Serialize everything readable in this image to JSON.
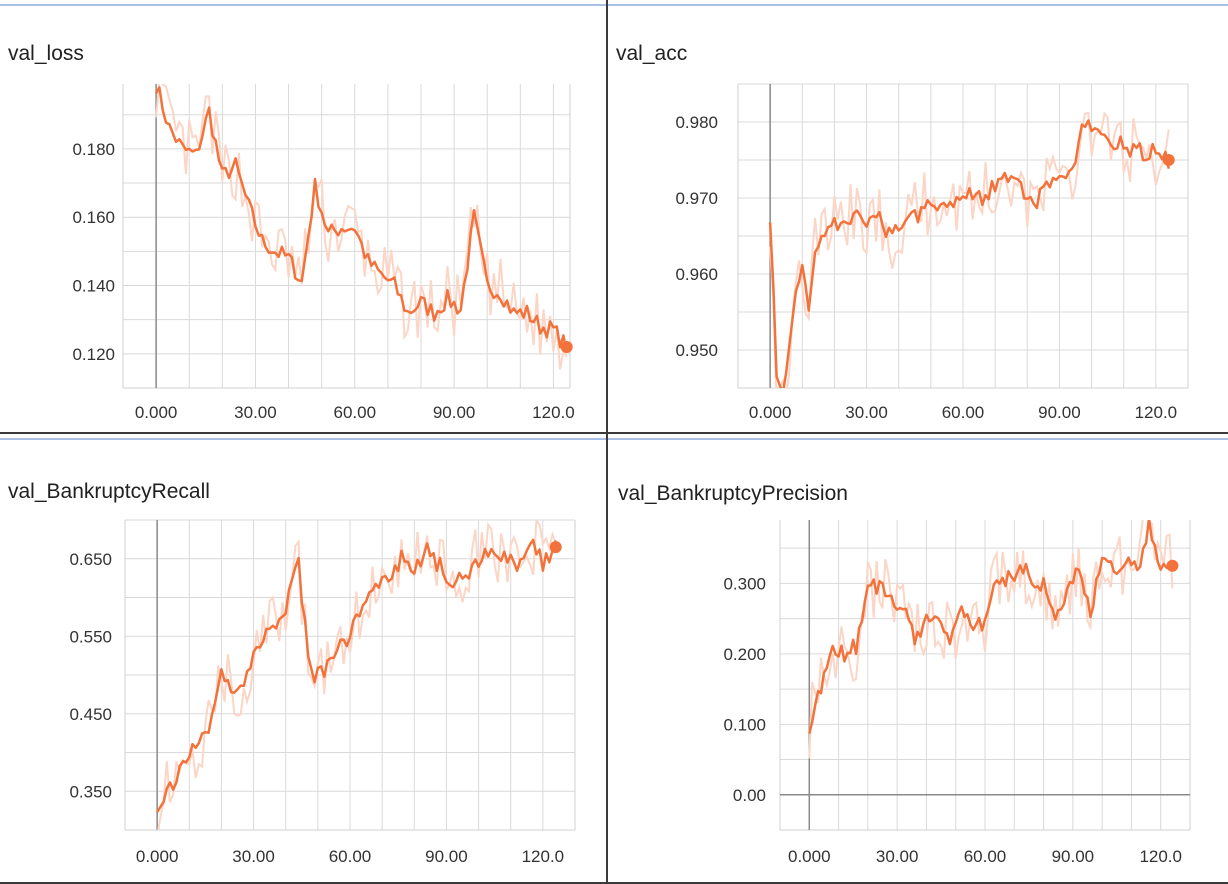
{
  "accent_color": "#f3723b",
  "raw_color": "#fbd5c6",
  "chart_data": [
    {
      "type": "line",
      "title": "val_loss",
      "x_ticks": [
        "0.000",
        "30.00",
        "60.00",
        "90.00",
        "120.0"
      ],
      "y_ticks": [
        "0.120",
        "0.140",
        "0.160",
        "0.180"
      ],
      "xlim": [
        -10,
        125
      ],
      "ylim": [
        0.11,
        0.199
      ],
      "grid": true,
      "series": [
        {
          "smoothing": "smoothed",
          "x": [
            0,
            4,
            8,
            12,
            16,
            20,
            24,
            28,
            32,
            36,
            40,
            44,
            48,
            52,
            56,
            60,
            64,
            68,
            72,
            76,
            80,
            84,
            88,
            92,
            96,
            100,
            104,
            108,
            112,
            116,
            120,
            124
          ],
          "y": [
            0.199,
            0.186,
            0.18,
            0.178,
            0.191,
            0.172,
            0.175,
            0.163,
            0.153,
            0.15,
            0.148,
            0.141,
            0.169,
            0.155,
            0.157,
            0.157,
            0.147,
            0.143,
            0.14,
            0.132,
            0.135,
            0.132,
            0.136,
            0.133,
            0.16,
            0.14,
            0.138,
            0.132,
            0.132,
            0.128,
            0.127,
            0.122
          ]
        }
      ]
    },
    {
      "type": "line",
      "title": "val_acc",
      "x_ticks": [
        "0.000",
        "30.00",
        "60.00",
        "90.00",
        "120.0"
      ],
      "y_ticks": [
        "0.950",
        "0.960",
        "0.970",
        "0.980"
      ],
      "xlim": [
        -10,
        130
      ],
      "ylim": [
        0.945,
        0.985
      ],
      "grid": true,
      "series": [
        {
          "smoothing": "smoothed",
          "x": [
            0,
            2,
            4,
            6,
            8,
            10,
            12,
            14,
            18,
            22,
            26,
            30,
            34,
            38,
            42,
            46,
            50,
            54,
            58,
            62,
            66,
            70,
            74,
            78,
            82,
            86,
            90,
            94,
            98,
            102,
            106,
            110,
            114,
            118,
            122,
            124
          ],
          "y": [
            0.968,
            0.946,
            0.945,
            0.95,
            0.957,
            0.961,
            0.955,
            0.964,
            0.966,
            0.967,
            0.968,
            0.966,
            0.967,
            0.965,
            0.967,
            0.968,
            0.97,
            0.969,
            0.97,
            0.971,
            0.97,
            0.972,
            0.973,
            0.971,
            0.969,
            0.971,
            0.972,
            0.974,
            0.98,
            0.978,
            0.977,
            0.977,
            0.976,
            0.976,
            0.976,
            0.975
          ]
        }
      ]
    },
    {
      "type": "line",
      "title": "val_BankruptcyRecall",
      "x_ticks": [
        "0.000",
        "30.00",
        "60.00",
        "90.00",
        "120.0"
      ],
      "y_ticks": [
        "0.350",
        "0.450",
        "0.550",
        "0.650"
      ],
      "xlim": [
        -10,
        130
      ],
      "ylim": [
        0.3,
        0.7
      ],
      "grid": true,
      "series": [
        {
          "smoothing": "smoothed",
          "x": [
            0,
            4,
            8,
            12,
            16,
            20,
            24,
            28,
            32,
            36,
            40,
            44,
            48,
            52,
            56,
            60,
            64,
            68,
            72,
            76,
            80,
            84,
            88,
            92,
            96,
            100,
            104,
            108,
            112,
            116,
            120,
            124
          ],
          "y": [
            0.335,
            0.355,
            0.38,
            0.41,
            0.43,
            0.5,
            0.48,
            0.5,
            0.545,
            0.56,
            0.59,
            0.64,
            0.5,
            0.5,
            0.53,
            0.55,
            0.6,
            0.62,
            0.63,
            0.65,
            0.64,
            0.66,
            0.64,
            0.62,
            0.63,
            0.65,
            0.66,
            0.65,
            0.64,
            0.68,
            0.64,
            0.665
          ]
        }
      ]
    },
    {
      "type": "line",
      "title": "val_BankruptcyPrecision",
      "x_ticks": [
        "0.000",
        "30.00",
        "60.00",
        "90.00",
        "120.0"
      ],
      "y_ticks": [
        "0.00",
        "0.100",
        "0.200",
        "0.300"
      ],
      "xlim": [
        -10,
        130
      ],
      "ylim": [
        -0.05,
        0.39
      ],
      "grid": true,
      "series": [
        {
          "smoothing": "smoothed",
          "x": [
            0,
            4,
            8,
            12,
            16,
            20,
            24,
            28,
            32,
            36,
            40,
            44,
            48,
            52,
            56,
            60,
            64,
            68,
            72,
            76,
            80,
            84,
            88,
            92,
            96,
            100,
            104,
            108,
            112,
            116,
            120,
            124
          ],
          "y": [
            0.1,
            0.15,
            0.2,
            0.2,
            0.21,
            0.29,
            0.3,
            0.28,
            0.27,
            0.22,
            0.25,
            0.26,
            0.22,
            0.26,
            0.23,
            0.25,
            0.3,
            0.31,
            0.32,
            0.31,
            0.3,
            0.24,
            0.28,
            0.33,
            0.26,
            0.33,
            0.32,
            0.33,
            0.32,
            0.38,
            0.33,
            0.325
          ]
        }
      ]
    }
  ]
}
